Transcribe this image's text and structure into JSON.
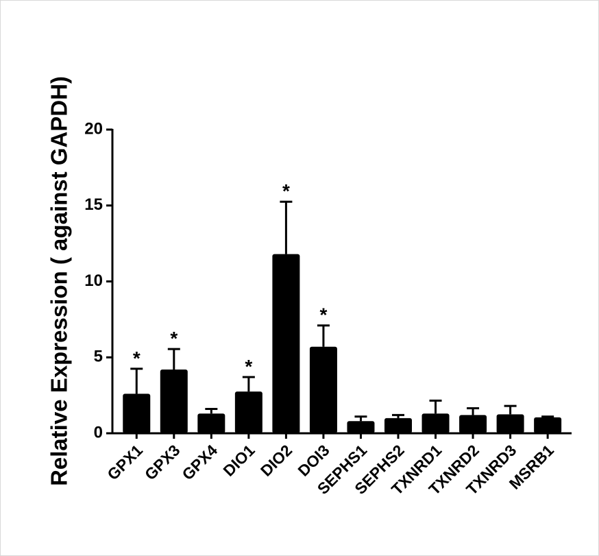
{
  "chart_data": {
    "type": "bar",
    "y_label": "Relative Expression ( against GAPDH)",
    "categories": [
      "GPX1",
      "GPX3",
      "GPX4",
      "DIO1",
      "DIO2",
      "DOI3",
      "SEPHS1",
      "SEPHS2",
      "TXNRD1",
      "TXNRD2",
      "TXNRD3",
      "MSRB1"
    ],
    "values": [
      2.6,
      4.2,
      1.3,
      2.75,
      11.8,
      5.7,
      0.8,
      1.0,
      1.3,
      1.2,
      1.25,
      1.05
    ],
    "errors": [
      1.65,
      1.35,
      0.3,
      0.95,
      3.45,
      1.4,
      0.3,
      0.2,
      0.85,
      0.45,
      0.55,
      0.05
    ],
    "significance": [
      "*",
      "*",
      null,
      "*",
      "*",
      "*",
      null,
      null,
      null,
      null,
      null,
      null
    ],
    "color": "#000000",
    "ylim": [
      0,
      20
    ],
    "yticks": [
      0,
      5,
      10,
      15,
      20
    ]
  }
}
